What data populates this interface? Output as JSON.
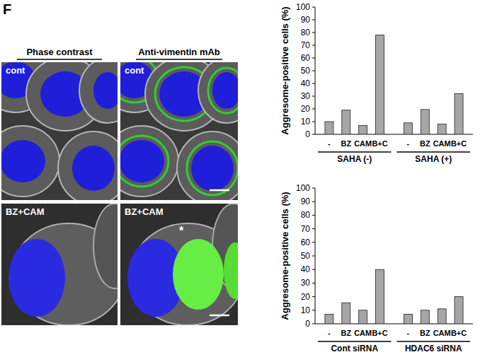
{
  "panel_label": "F",
  "micrographs": {
    "column_titles": [
      "Phase contrast",
      "Anti-vimentin mAb"
    ],
    "row_labels": [
      "cont",
      "BZ+CAM"
    ],
    "annotation": "*"
  },
  "chart_data": [
    {
      "type": "bar",
      "y_label": "Aggresome-positive cells (%)",
      "categories": [
        "-",
        "BZ",
        "CAM",
        "B+C",
        "-",
        "BZ",
        "CAM",
        "B+C"
      ],
      "group_labels": [
        "SAHA (-)",
        "SAHA (+)"
      ],
      "values": [
        10,
        19,
        7,
        78,
        9,
        19.5,
        8,
        32
      ],
      "color": "#a6a6a6",
      "ylim": [
        0,
        100
      ],
      "yticks": [
        0,
        10,
        20,
        30,
        40,
        50,
        60,
        70,
        80,
        90,
        100
      ],
      "grid": false
    },
    {
      "type": "bar",
      "y_label": "Aggresome-positive cells (%)",
      "categories": [
        "-",
        "BZ",
        "CAM",
        "B+C",
        "-",
        "BZ",
        "CAM",
        "B+C"
      ],
      "group_labels": [
        "Cont siRNA",
        "HDAC6 siRNA"
      ],
      "values": [
        7,
        15.5,
        10,
        40,
        7,
        10,
        11,
        20
      ],
      "color": "#a6a6a6",
      "ylim": [
        0,
        100
      ],
      "yticks": [
        0,
        10,
        20,
        30,
        40,
        50,
        60,
        70,
        80,
        90,
        100
      ],
      "grid": false
    }
  ]
}
